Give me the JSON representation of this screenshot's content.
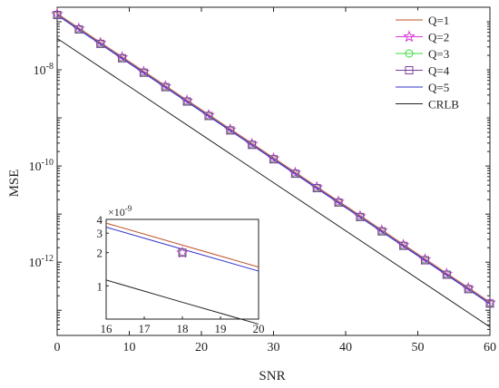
{
  "chart_data": [
    {
      "type": "line",
      "xlabel": "SNR",
      "ylabel": "MSE",
      "xlim": [
        0,
        60
      ],
      "ylim": [
        3e-14,
        2e-07
      ],
      "yscale": "log",
      "xticks": [
        0,
        10,
        20,
        30,
        40,
        50,
        60
      ],
      "xtick_labels": [
        "0",
        "10",
        "20",
        "30",
        "40",
        "50",
        "60"
      ],
      "yticks": [
        1e-12,
        1e-10,
        1e-08
      ],
      "ytick_labels": [
        {
          "base": "10",
          "exp": "-12"
        },
        {
          "base": "10",
          "exp": "-10"
        },
        {
          "base": "10",
          "exp": "-8"
        }
      ],
      "grid": false,
      "legend": "top-right",
      "x": [
        0,
        3,
        6,
        9,
        12,
        15,
        18,
        21,
        24,
        27,
        30,
        33,
        36,
        39,
        42,
        45,
        48,
        51,
        54,
        57,
        60
      ],
      "series": [
        {
          "name": "Q=1",
          "color": "#c0522a",
          "marker": "none",
          "start": 1.48e-07,
          "end": 1.48e-13
        },
        {
          "name": "Q=2",
          "color": "#d63ad6",
          "marker": "star",
          "start": 1.43e-07,
          "end": 1.43e-13
        },
        {
          "name": "Q=3",
          "color": "#3ed83e",
          "marker": "circle",
          "start": 1.4e-07,
          "end": 1.4e-13
        },
        {
          "name": "Q=4",
          "color": "#7d3f9e",
          "marker": "square",
          "start": 1.38e-07,
          "end": 1.38e-13
        },
        {
          "name": "Q=5",
          "color": "#3030cc",
          "marker": "none",
          "start": 1.36e-07,
          "end": 1.36e-13
        },
        {
          "name": "CRLB",
          "color": "#222222",
          "marker": "none",
          "start": 4.5e-08,
          "end": 4.5e-14
        }
      ]
    },
    {
      "type": "line",
      "xlim": [
        16,
        20
      ],
      "ylim": [
        5e-10,
        4e-09
      ],
      "yscale": "log",
      "xticks": [
        16,
        17,
        18,
        19,
        20
      ],
      "xtick_labels": [
        "16",
        "17",
        "18",
        "19",
        "20"
      ],
      "yticks": [
        1e-09,
        2e-09,
        3e-09,
        4e-09
      ],
      "ytick_labels": [
        "1",
        "2",
        "3",
        "4"
      ],
      "y_multiplier": {
        "base": "×10",
        "exp": "-9"
      },
      "x": [
        16,
        18,
        20
      ],
      "series": [
        {
          "name": "Q=1",
          "color": "#c0522a",
          "values": [
            3.7e-09,
            2.34e-09,
            1.48e-09
          ]
        },
        {
          "name": "Q=5",
          "color": "#3030cc",
          "values": [
            3.4e-09,
            2.15e-09,
            1.36e-09
          ]
        },
        {
          "name": "CRLB",
          "color": "#222222",
          "values": [
            1.13e-09,
            7.1e-10,
            4.5e-10
          ]
        }
      ],
      "markers": [
        {
          "x": 18,
          "y": 2e-09,
          "shapes": [
            "star",
            "circle",
            "square"
          ]
        }
      ]
    }
  ]
}
